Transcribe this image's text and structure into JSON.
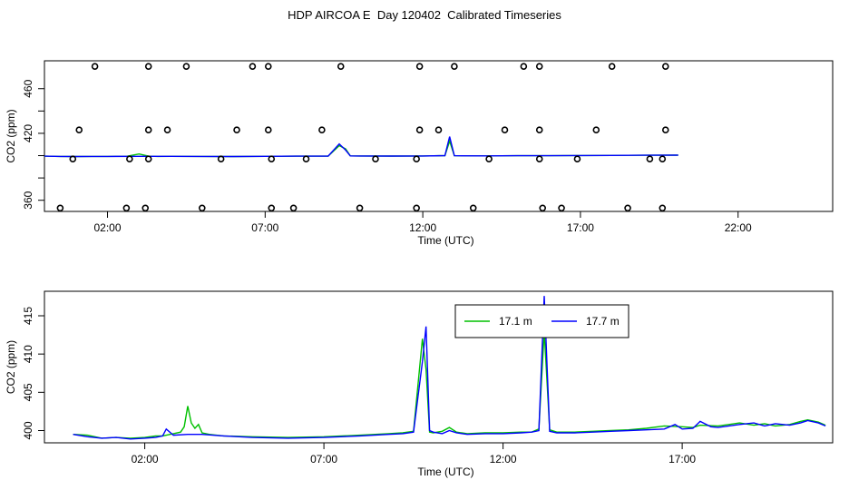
{
  "title": "HDP AIRCOA E  Day 120402  Calibrated Timeseries",
  "colors": {
    "series_17_1": "#00c000",
    "series_17_7": "#0000ff",
    "axis": "#000000"
  },
  "chart_data": [
    {
      "type": "scatter",
      "title": "",
      "xlabel": "Time (UTC)",
      "ylabel": "CO2 (ppm)",
      "xlim": [
        0,
        25
      ],
      "ylim": [
        350,
        485
      ],
      "xticks": [
        2,
        7,
        12,
        17,
        22
      ],
      "xticklabels": [
        "02:00",
        "07:00",
        "12:00",
        "17:00",
        "22:00"
      ],
      "yticks": [
        360,
        380,
        400,
        420,
        440,
        460
      ],
      "yticklabels": [
        "360",
        "",
        "",
        "420",
        "",
        "460"
      ],
      "reference_points": [
        {
          "x": 1.6,
          "y": 480
        },
        {
          "x": 3.3,
          "y": 480
        },
        {
          "x": 4.5,
          "y": 480
        },
        {
          "x": 6.6,
          "y": 480
        },
        {
          "x": 7.1,
          "y": 480
        },
        {
          "x": 9.4,
          "y": 480
        },
        {
          "x": 11.9,
          "y": 480
        },
        {
          "x": 13.0,
          "y": 480
        },
        {
          "x": 15.2,
          "y": 480
        },
        {
          "x": 15.7,
          "y": 480
        },
        {
          "x": 18.0,
          "y": 480
        },
        {
          "x": 19.7,
          "y": 480
        },
        {
          "x": 1.1,
          "y": 423
        },
        {
          "x": 3.3,
          "y": 423
        },
        {
          "x": 3.9,
          "y": 423
        },
        {
          "x": 6.1,
          "y": 423
        },
        {
          "x": 7.1,
          "y": 423
        },
        {
          "x": 8.8,
          "y": 423
        },
        {
          "x": 11.9,
          "y": 423
        },
        {
          "x": 12.5,
          "y": 423
        },
        {
          "x": 14.6,
          "y": 423
        },
        {
          "x": 15.7,
          "y": 423
        },
        {
          "x": 17.5,
          "y": 423
        },
        {
          "x": 19.7,
          "y": 423
        },
        {
          "x": 0.9,
          "y": 397
        },
        {
          "x": 2.7,
          "y": 397
        },
        {
          "x": 3.3,
          "y": 397
        },
        {
          "x": 5.6,
          "y": 397
        },
        {
          "x": 7.2,
          "y": 397
        },
        {
          "x": 8.3,
          "y": 397
        },
        {
          "x": 10.5,
          "y": 397
        },
        {
          "x": 11.8,
          "y": 397
        },
        {
          "x": 14.1,
          "y": 397
        },
        {
          "x": 15.7,
          "y": 397
        },
        {
          "x": 16.9,
          "y": 397
        },
        {
          "x": 19.2,
          "y": 397
        },
        {
          "x": 19.6,
          "y": 397
        },
        {
          "x": 0.5,
          "y": 353
        },
        {
          "x": 2.6,
          "y": 353
        },
        {
          "x": 3.2,
          "y": 353
        },
        {
          "x": 5.0,
          "y": 353
        },
        {
          "x": 7.2,
          "y": 353
        },
        {
          "x": 7.9,
          "y": 353
        },
        {
          "x": 10.0,
          "y": 353
        },
        {
          "x": 11.8,
          "y": 353
        },
        {
          "x": 13.6,
          "y": 353
        },
        {
          "x": 15.8,
          "y": 353
        },
        {
          "x": 16.4,
          "y": 353
        },
        {
          "x": 18.5,
          "y": 353
        },
        {
          "x": 19.6,
          "y": 353
        }
      ],
      "series": [
        {
          "color": "#00c000",
          "x": [
            0,
            0.5,
            1,
            1.5,
            2,
            2.6,
            3.0,
            3.3,
            3.6,
            4,
            5,
            6,
            7,
            8,
            9,
            9.35,
            9.55,
            9.7,
            10,
            11,
            12,
            12.7,
            12.85,
            13,
            14,
            15,
            16,
            17,
            18,
            19,
            20,
            20.1
          ],
          "y": [
            399.5,
            399.3,
            399.2,
            399.3,
            399.3,
            399.4,
            401.5,
            399.5,
            399.3,
            399.4,
            399.3,
            399.2,
            399.4,
            399.5,
            399.6,
            409,
            406,
            399.8,
            399.7,
            399.6,
            399.7,
            400,
            413,
            399.9,
            399.8,
            399.9,
            399.9,
            400.1,
            400.2,
            400.3,
            400.5,
            400.4
          ]
        },
        {
          "color": "#0000ff",
          "x": [
            0,
            0.5,
            1,
            1.5,
            2,
            3,
            4,
            5,
            6,
            7,
            8,
            9,
            9.35,
            9.55,
            9.7,
            10,
            11,
            12,
            12.7,
            12.85,
            13,
            14,
            15,
            16,
            17,
            18,
            19,
            20,
            20.1
          ],
          "y": [
            399.5,
            399.3,
            399.2,
            399.3,
            399.3,
            399.4,
            399.4,
            399.3,
            399.2,
            399.4,
            399.5,
            399.6,
            410.5,
            405,
            399.8,
            399.7,
            399.6,
            399.7,
            400,
            417,
            399.9,
            399.8,
            399.9,
            399.9,
            400.1,
            400.2,
            400.3,
            400.5,
            400.4
          ]
        }
      ]
    },
    {
      "type": "line",
      "title": "",
      "xlabel": "Time (UTC)",
      "ylabel": "CO2 (ppm)",
      "xlim": [
        -0.8,
        21.2
      ],
      "ylim": [
        398.4,
        418.2
      ],
      "xticks": [
        2,
        7,
        12,
        17
      ],
      "xticklabels": [
        "02:00",
        "07:00",
        "12:00",
        "17:00"
      ],
      "yticks": [
        400,
        405,
        410,
        415
      ],
      "yticklabels": [
        "400",
        "405",
        "410",
        "415"
      ],
      "legend": {
        "position": "top-center",
        "entries": [
          "17.1 m",
          "17.7 m"
        ]
      },
      "series": [
        {
          "name": "17.1 m",
          "color": "#00c000",
          "x": [
            0,
            0.4,
            0.8,
            1.2,
            1.6,
            2.0,
            2.3,
            2.5,
            2.8,
            3.0,
            3.1,
            3.2,
            3.3,
            3.4,
            3.5,
            3.6,
            3.8,
            4.2,
            5,
            6,
            7,
            8,
            8.8,
            9.2,
            9.5,
            9.75,
            9.85,
            9.95,
            10.05,
            10.3,
            10.5,
            10.7,
            11,
            11.5,
            12,
            12.5,
            12.8,
            13.0,
            13.15,
            13.3,
            13.5,
            14,
            14.5,
            15,
            15.5,
            16,
            16.5,
            17,
            17.3,
            17.5,
            18,
            18.3,
            18.6,
            19,
            19.3,
            19.6,
            20,
            20.3,
            20.5,
            20.8,
            21
          ],
          "y": [
            399.5,
            399.4,
            399.0,
            399.1,
            399.0,
            399.1,
            399.3,
            399.3,
            399.6,
            399.8,
            400.5,
            403.2,
            401.0,
            400.3,
            400.8,
            399.7,
            399.5,
            399.3,
            399.2,
            399.1,
            399.2,
            399.4,
            399.6,
            399.7,
            399.9,
            412.0,
            408.0,
            399.8,
            399.7,
            399.9,
            400.4,
            399.8,
            399.6,
            399.7,
            399.7,
            399.8,
            399.8,
            400.2,
            413.0,
            400.1,
            399.8,
            399.8,
            399.9,
            400.0,
            400.1,
            400.3,
            400.6,
            400.5,
            400.4,
            400.7,
            400.6,
            400.8,
            401.0,
            400.7,
            400.9,
            400.6,
            400.8,
            401.2,
            401.4,
            401.1,
            400.7
          ]
        },
        {
          "name": "17.7 m",
          "color": "#0000ff",
          "x": [
            0,
            0.4,
            0.8,
            1.2,
            1.6,
            2.0,
            2.3,
            2.5,
            2.6,
            2.8,
            3.2,
            3.6,
            4.2,
            5,
            6,
            7,
            8,
            8.8,
            9.2,
            9.5,
            9.75,
            9.85,
            9.95,
            10.05,
            10.3,
            10.5,
            10.7,
            11,
            11.5,
            12,
            12.5,
            12.8,
            13.0,
            13.15,
            13.3,
            13.5,
            14,
            14.5,
            15,
            15.5,
            16,
            16.5,
            16.8,
            17,
            17.3,
            17.5,
            17.8,
            18,
            18.3,
            18.6,
            19,
            19.3,
            19.6,
            20,
            20.3,
            20.5,
            20.8,
            21
          ],
          "y": [
            399.5,
            399.2,
            399.0,
            399.1,
            398.9,
            399.0,
            399.1,
            399.3,
            400.2,
            399.4,
            399.5,
            399.5,
            399.3,
            399.1,
            399.0,
            399.1,
            399.3,
            399.5,
            399.6,
            399.8,
            409.0,
            413.6,
            400.0,
            399.8,
            399.6,
            400.0,
            399.7,
            399.5,
            399.6,
            399.6,
            399.7,
            399.8,
            400.0,
            417.6,
            399.9,
            399.7,
            399.7,
            399.8,
            399.9,
            400.0,
            400.1,
            400.2,
            400.8,
            400.2,
            400.3,
            401.2,
            400.5,
            400.4,
            400.6,
            400.8,
            401.0,
            400.6,
            400.9,
            400.7,
            401.0,
            401.3,
            401.0,
            400.6
          ]
        }
      ]
    }
  ]
}
